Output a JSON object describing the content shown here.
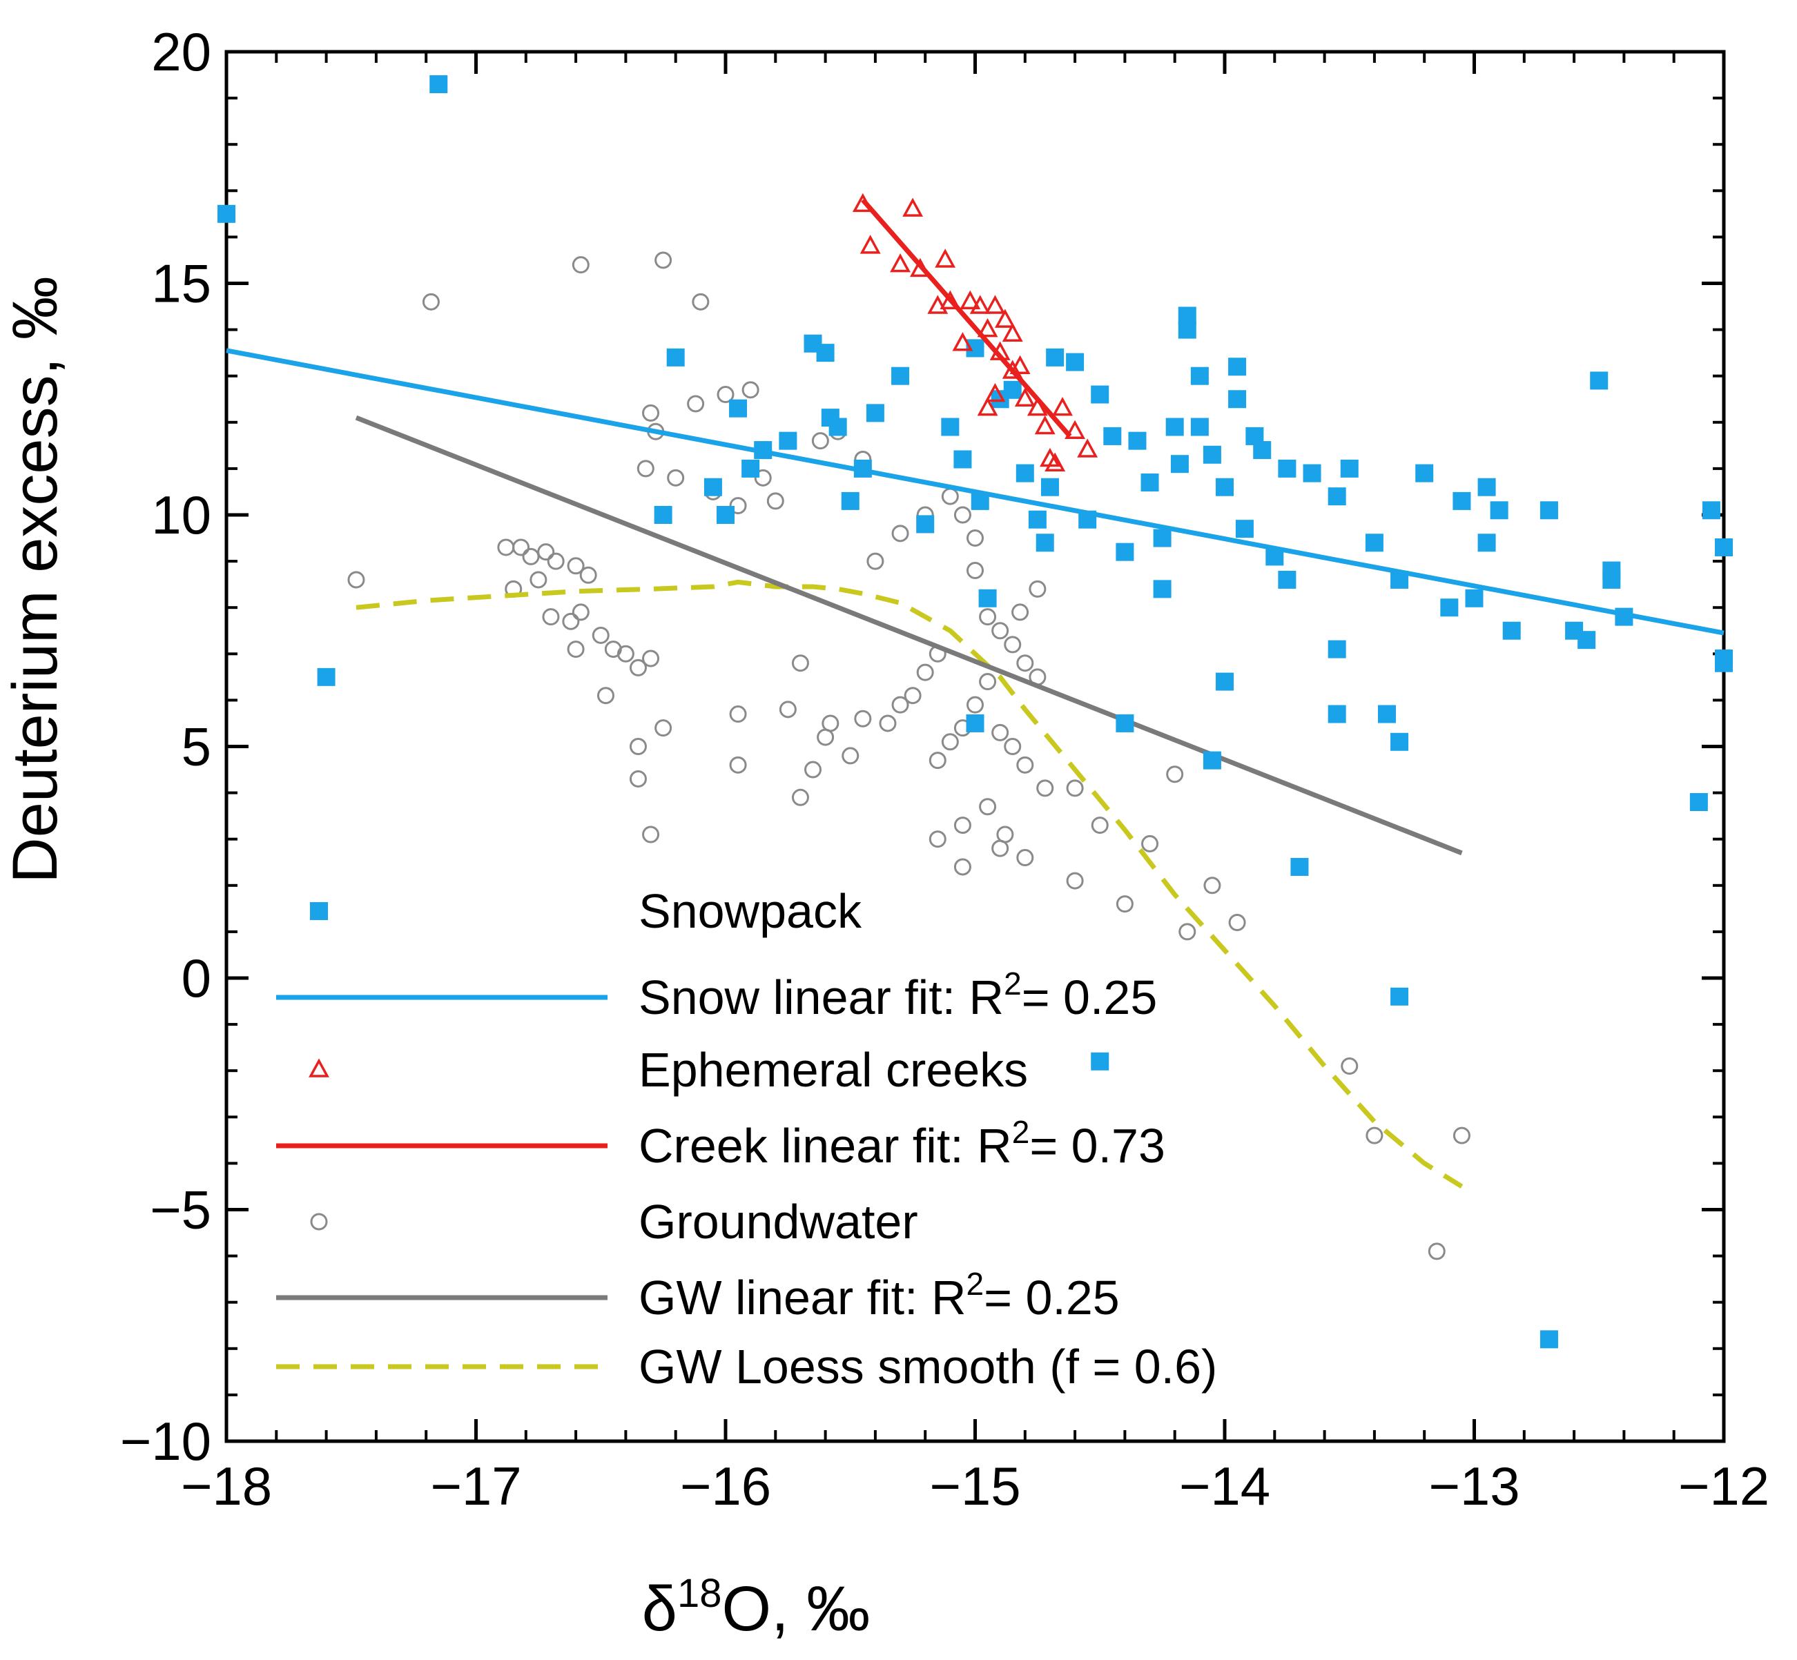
{
  "chart_data": {
    "type": "scatter",
    "xlabel": {
      "prefix": "δ",
      "sup": "18",
      "suffix": "O, ‰"
    },
    "ylabel": "Deuterium excess, ‰",
    "xlim": [
      -18,
      -12
    ],
    "ylim": [
      -10,
      20
    ],
    "xticks": [
      {
        "value": -18,
        "label": "−18"
      },
      {
        "value": -17,
        "label": "−17"
      },
      {
        "value": -16,
        "label": "−16"
      },
      {
        "value": -15,
        "label": "−15"
      },
      {
        "value": -14,
        "label": "−14"
      },
      {
        "value": -13,
        "label": "−13"
      },
      {
        "value": -12,
        "label": "−12"
      }
    ],
    "yticks": [
      {
        "value": 20,
        "label": "20"
      },
      {
        "value": 15,
        "label": "15"
      },
      {
        "value": 10,
        "label": "10"
      },
      {
        "value": 5,
        "label": "5"
      },
      {
        "value": 0,
        "label": "0"
      },
      {
        "value": -5,
        "label": "−5"
      },
      {
        "value": -10,
        "label": "−10"
      }
    ],
    "x_minor_step": 0.2,
    "y_minor_step": 1,
    "series": [
      {
        "name": "Snowpack",
        "kind": "scatter",
        "marker": "square",
        "color": "#1aa3e8",
        "points": [
          [
            -18.0,
            16.5
          ],
          [
            -17.15,
            19.3
          ],
          [
            -17.6,
            6.5
          ],
          [
            -16.2,
            13.4
          ],
          [
            -16.25,
            10.0
          ],
          [
            -16.05,
            10.6
          ],
          [
            -16.0,
            10.0
          ],
          [
            -15.95,
            12.3
          ],
          [
            -15.9,
            11.0
          ],
          [
            -15.85,
            11.4
          ],
          [
            -15.75,
            11.6
          ],
          [
            -15.65,
            13.7
          ],
          [
            -15.6,
            13.5
          ],
          [
            -15.58,
            12.1
          ],
          [
            -15.55,
            11.9
          ],
          [
            -15.5,
            10.3
          ],
          [
            -15.45,
            11.0
          ],
          [
            -15.4,
            12.2
          ],
          [
            -15.3,
            13.0
          ],
          [
            -15.2,
            9.8
          ],
          [
            -15.1,
            11.9
          ],
          [
            -15.05,
            11.2
          ],
          [
            -15.0,
            13.6
          ],
          [
            -14.98,
            10.3
          ],
          [
            -14.95,
            8.2
          ],
          [
            -14.9,
            12.5
          ],
          [
            -14.85,
            12.7
          ],
          [
            -14.8,
            10.9
          ],
          [
            -14.75,
            9.9
          ],
          [
            -14.72,
            9.4
          ],
          [
            -14.7,
            10.6
          ],
          [
            -14.68,
            13.4
          ],
          [
            -14.6,
            13.3
          ],
          [
            -14.55,
            9.9
          ],
          [
            -14.5,
            12.6
          ],
          [
            -14.45,
            11.7
          ],
          [
            -14.4,
            9.2
          ],
          [
            -14.35,
            11.6
          ],
          [
            -14.3,
            10.7
          ],
          [
            -14.25,
            9.5
          ],
          [
            -14.25,
            8.4
          ],
          [
            -14.2,
            11.9
          ],
          [
            -14.18,
            11.1
          ],
          [
            -14.15,
            14.3
          ],
          [
            -14.15,
            14.0
          ],
          [
            -14.1,
            13.0
          ],
          [
            -14.1,
            11.9
          ],
          [
            -14.05,
            11.3
          ],
          [
            -14.0,
            10.6
          ],
          [
            -13.95,
            13.2
          ],
          [
            -13.95,
            12.5
          ],
          [
            -13.92,
            9.7
          ],
          [
            -13.88,
            11.7
          ],
          [
            -13.85,
            11.4
          ],
          [
            -13.8,
            9.1
          ],
          [
            -13.75,
            11.0
          ],
          [
            -13.75,
            8.6
          ],
          [
            -13.65,
            10.9
          ],
          [
            -13.55,
            7.1
          ],
          [
            -13.55,
            10.4
          ],
          [
            -13.5,
            11.0
          ],
          [
            -13.4,
            9.4
          ],
          [
            -13.3,
            8.6
          ],
          [
            -13.2,
            10.9
          ],
          [
            -13.1,
            8.0
          ],
          [
            -13.05,
            10.3
          ],
          [
            -13.0,
            8.2
          ],
          [
            -12.95,
            10.6
          ],
          [
            -12.95,
            9.4
          ],
          [
            -12.9,
            10.1
          ],
          [
            -12.85,
            7.5
          ],
          [
            -12.7,
            10.1
          ],
          [
            -12.6,
            7.5
          ],
          [
            -12.55,
            7.3
          ],
          [
            -12.5,
            12.9
          ],
          [
            -12.45,
            8.8
          ],
          [
            -12.45,
            8.6
          ],
          [
            -12.05,
            10.1
          ],
          [
            -12.0,
            9.3
          ],
          [
            -12.0,
            6.9
          ],
          [
            -12.4,
            7.8
          ],
          [
            -12.0,
            6.8
          ],
          [
            -12.7,
            -7.8
          ],
          [
            -13.3,
            -0.4
          ],
          [
            -14.5,
            -1.8
          ],
          [
            -13.55,
            5.7
          ],
          [
            -13.35,
            5.7
          ],
          [
            -13.3,
            5.1
          ],
          [
            -14.4,
            5.5
          ],
          [
            -14.05,
            4.7
          ],
          [
            -13.7,
            2.4
          ],
          [
            -12.1,
            3.8
          ],
          [
            -14.0,
            6.4
          ],
          [
            -15.0,
            5.5
          ]
        ]
      },
      {
        "name": "Snow linear fit: R²= 0.25",
        "kind": "line",
        "color": "#1aa3e8",
        "legend": {
          "main": "Snow linear fit: R",
          "sup": "2",
          "tail": "= 0.25"
        },
        "points": [
          [
            -18,
            13.55
          ],
          [
            -12,
            7.45
          ]
        ]
      },
      {
        "name": "Ephemeral creeks",
        "kind": "scatter",
        "marker": "triangle",
        "color": "#e8201e",
        "points": [
          [
            -15.45,
            16.7
          ],
          [
            -15.42,
            15.8
          ],
          [
            -15.3,
            15.4
          ],
          [
            -15.25,
            16.6
          ],
          [
            -15.22,
            15.3
          ],
          [
            -15.15,
            14.5
          ],
          [
            -15.12,
            15.5
          ],
          [
            -15.1,
            14.6
          ],
          [
            -15.05,
            13.7
          ],
          [
            -15.02,
            14.6
          ],
          [
            -14.98,
            14.5
          ],
          [
            -14.95,
            14.0
          ],
          [
            -14.92,
            14.5
          ],
          [
            -14.9,
            13.5
          ],
          [
            -14.88,
            14.2
          ],
          [
            -14.85,
            13.9
          ],
          [
            -14.85,
            13.1
          ],
          [
            -14.82,
            13.2
          ],
          [
            -14.8,
            12.5
          ],
          [
            -14.75,
            12.3
          ],
          [
            -14.72,
            11.9
          ],
          [
            -14.7,
            11.2
          ],
          [
            -14.68,
            11.1
          ],
          [
            -14.65,
            12.3
          ],
          [
            -14.6,
            11.8
          ],
          [
            -14.55,
            11.4
          ],
          [
            -14.92,
            12.6
          ],
          [
            -14.95,
            12.3
          ]
        ]
      },
      {
        "name": "Creek linear fit: R²= 0.73",
        "kind": "line",
        "color": "#e8201e",
        "legend": {
          "main": "Creek linear fit: R",
          "sup": "2",
          "tail": "= 0.73"
        },
        "points": [
          [
            -15.45,
            16.8
          ],
          [
            -14.62,
            11.7
          ]
        ]
      },
      {
        "name": "Groundwater",
        "kind": "scatter",
        "marker": "circle",
        "color": "#8a8a8a",
        "points": [
          [
            -17.48,
            8.6
          ],
          [
            -17.18,
            14.6
          ],
          [
            -16.58,
            15.4
          ],
          [
            -16.25,
            15.5
          ],
          [
            -16.1,
            14.6
          ],
          [
            -16.88,
            9.3
          ],
          [
            -16.82,
            9.3
          ],
          [
            -16.78,
            9.1
          ],
          [
            -16.72,
            9.2
          ],
          [
            -16.68,
            9.0
          ],
          [
            -16.75,
            8.6
          ],
          [
            -16.6,
            8.9
          ],
          [
            -16.55,
            8.7
          ],
          [
            -16.85,
            8.4
          ],
          [
            -16.7,
            7.8
          ],
          [
            -16.62,
            7.7
          ],
          [
            -16.58,
            7.9
          ],
          [
            -16.5,
            7.4
          ],
          [
            -16.45,
            7.1
          ],
          [
            -16.4,
            7.0
          ],
          [
            -16.35,
            6.7
          ],
          [
            -16.3,
            6.9
          ],
          [
            -16.48,
            6.1
          ],
          [
            -16.6,
            7.1
          ],
          [
            -16.35,
            5.0
          ],
          [
            -16.35,
            4.3
          ],
          [
            -16.3,
            3.1
          ],
          [
            -16.25,
            5.4
          ],
          [
            -16.32,
            11.0
          ],
          [
            -16.28,
            11.8
          ],
          [
            -16.3,
            12.2
          ],
          [
            -16.12,
            12.4
          ],
          [
            -16.0,
            12.6
          ],
          [
            -15.9,
            12.7
          ],
          [
            -16.2,
            10.8
          ],
          [
            -16.05,
            10.5
          ],
          [
            -15.95,
            10.2
          ],
          [
            -15.8,
            10.3
          ],
          [
            -15.85,
            10.8
          ],
          [
            -15.62,
            11.6
          ],
          [
            -15.55,
            11.8
          ],
          [
            -15.45,
            11.2
          ],
          [
            -15.6,
            13.5
          ],
          [
            -15.4,
            9.0
          ],
          [
            -15.3,
            9.6
          ],
          [
            -15.2,
            10.0
          ],
          [
            -15.1,
            10.4
          ],
          [
            -15.05,
            10.0
          ],
          [
            -15.0,
            9.5
          ],
          [
            -15.0,
            8.8
          ],
          [
            -14.95,
            7.8
          ],
          [
            -14.9,
            7.5
          ],
          [
            -14.85,
            7.2
          ],
          [
            -14.8,
            6.8
          ],
          [
            -14.75,
            6.5
          ],
          [
            -14.95,
            6.4
          ],
          [
            -15.0,
            5.9
          ],
          [
            -15.05,
            5.4
          ],
          [
            -15.1,
            5.1
          ],
          [
            -15.15,
            4.7
          ],
          [
            -14.9,
            5.3
          ],
          [
            -14.85,
            5.0
          ],
          [
            -14.8,
            4.6
          ],
          [
            -14.72,
            4.1
          ],
          [
            -14.6,
            4.1
          ],
          [
            -14.5,
            3.3
          ],
          [
            -14.6,
            2.1
          ],
          [
            -14.4,
            1.6
          ],
          [
            -14.3,
            2.9
          ],
          [
            -14.2,
            4.4
          ],
          [
            -14.15,
            1.0
          ],
          [
            -14.05,
            2.0
          ],
          [
            -13.95,
            1.2
          ],
          [
            -13.5,
            -1.9
          ],
          [
            -13.4,
            -3.4
          ],
          [
            -13.15,
            -5.9
          ],
          [
            -13.05,
            -3.4
          ],
          [
            -14.95,
            3.7
          ],
          [
            -14.88,
            3.1
          ],
          [
            -14.8,
            2.6
          ],
          [
            -14.9,
            2.8
          ],
          [
            -15.05,
            2.4
          ],
          [
            -15.15,
            3.0
          ],
          [
            -15.05,
            3.3
          ],
          [
            -15.5,
            4.8
          ],
          [
            -15.6,
            5.2
          ],
          [
            -15.7,
            3.9
          ],
          [
            -15.65,
            4.5
          ],
          [
            -15.58,
            5.5
          ],
          [
            -15.45,
            5.6
          ],
          [
            -15.35,
            5.5
          ],
          [
            -15.3,
            5.9
          ],
          [
            -15.25,
            6.1
          ],
          [
            -15.2,
            6.6
          ],
          [
            -15.15,
            7.0
          ],
          [
            -15.95,
            5.7
          ],
          [
            -15.95,
            4.6
          ],
          [
            -15.75,
            5.8
          ],
          [
            -15.7,
            6.8
          ],
          [
            -14.75,
            8.4
          ],
          [
            -14.82,
            7.9
          ]
        ]
      },
      {
        "name": "GW linear fit: R²= 0.25",
        "kind": "line",
        "color": "#7a7a7a",
        "legend": {
          "main": "GW linear fit: R",
          "sup": "2",
          "tail": "= 0.25"
        },
        "points": [
          [
            -17.48,
            12.1
          ],
          [
            -13.05,
            2.7
          ]
        ]
      },
      {
        "name": "GW Loess smooth (f = 0.6)",
        "kind": "line",
        "dashed": true,
        "color": "#c8c81e",
        "points": [
          [
            -17.48,
            8.0
          ],
          [
            -17.2,
            8.15
          ],
          [
            -16.9,
            8.25
          ],
          [
            -16.6,
            8.35
          ],
          [
            -16.3,
            8.4
          ],
          [
            -16.05,
            8.45
          ],
          [
            -15.95,
            8.55
          ],
          [
            -15.8,
            8.45
          ],
          [
            -15.65,
            8.45
          ],
          [
            -15.55,
            8.4
          ],
          [
            -15.45,
            8.3
          ],
          [
            -15.3,
            8.1
          ],
          [
            -15.2,
            7.8
          ],
          [
            -15.1,
            7.5
          ],
          [
            -15.0,
            7.0
          ],
          [
            -14.9,
            6.5
          ],
          [
            -14.8,
            5.8
          ],
          [
            -14.6,
            4.5
          ],
          [
            -14.4,
            3.2
          ],
          [
            -14.2,
            1.8
          ],
          [
            -14.0,
            0.6
          ],
          [
            -13.8,
            -0.6
          ],
          [
            -13.6,
            -1.9
          ],
          [
            -13.4,
            -3.1
          ],
          [
            -13.2,
            -4.0
          ],
          [
            -13.05,
            -4.5
          ]
        ]
      }
    ],
    "legend_location": "bottom-center"
  },
  "colors": {
    "snow": "#1aa3e8",
    "creek": "#e8201e",
    "gw": "#8a8a8a",
    "loess": "#c8c81e"
  }
}
